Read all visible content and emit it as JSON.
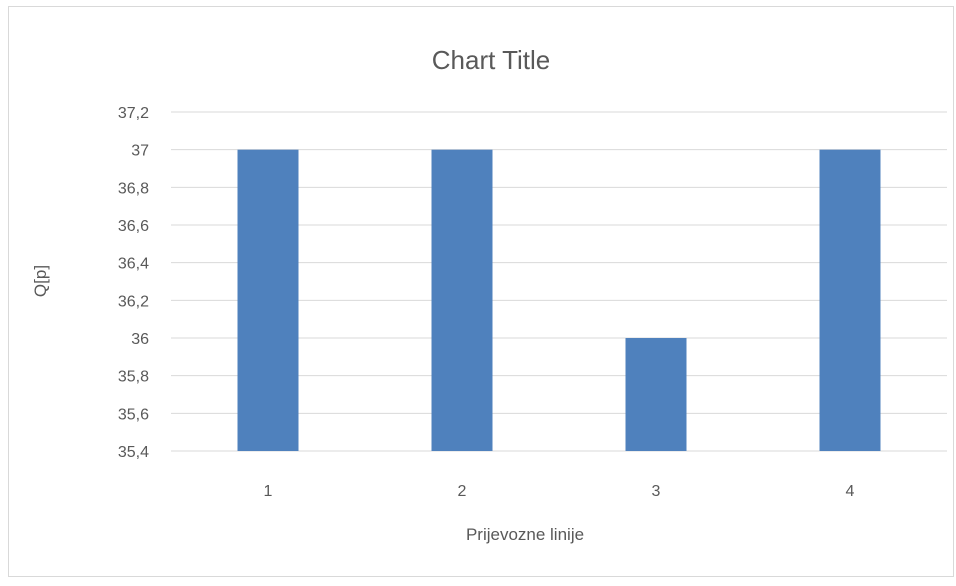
{
  "chart_data": {
    "type": "bar",
    "title": "Chart Title",
    "xlabel": "Prijevozne linije",
    "ylabel": "Q[p]",
    "categories": [
      "1",
      "2",
      "3",
      "4"
    ],
    "series": [
      {
        "values": [
          37,
          37,
          36,
          37
        ],
        "color": "#4f81bd"
      }
    ],
    "ylim": [
      35.4,
      37.2
    ],
    "yticks": [
      35.4,
      35.6,
      35.8,
      36,
      36.2,
      36.4,
      36.6,
      36.8,
      37,
      37.2
    ],
    "ytick_labels": [
      "35,4",
      "35,6",
      "35,8",
      "36",
      "36,2",
      "36,4",
      "36,6",
      "36,8",
      "37",
      "37,2"
    ],
    "grid": true,
    "legend": "none"
  }
}
